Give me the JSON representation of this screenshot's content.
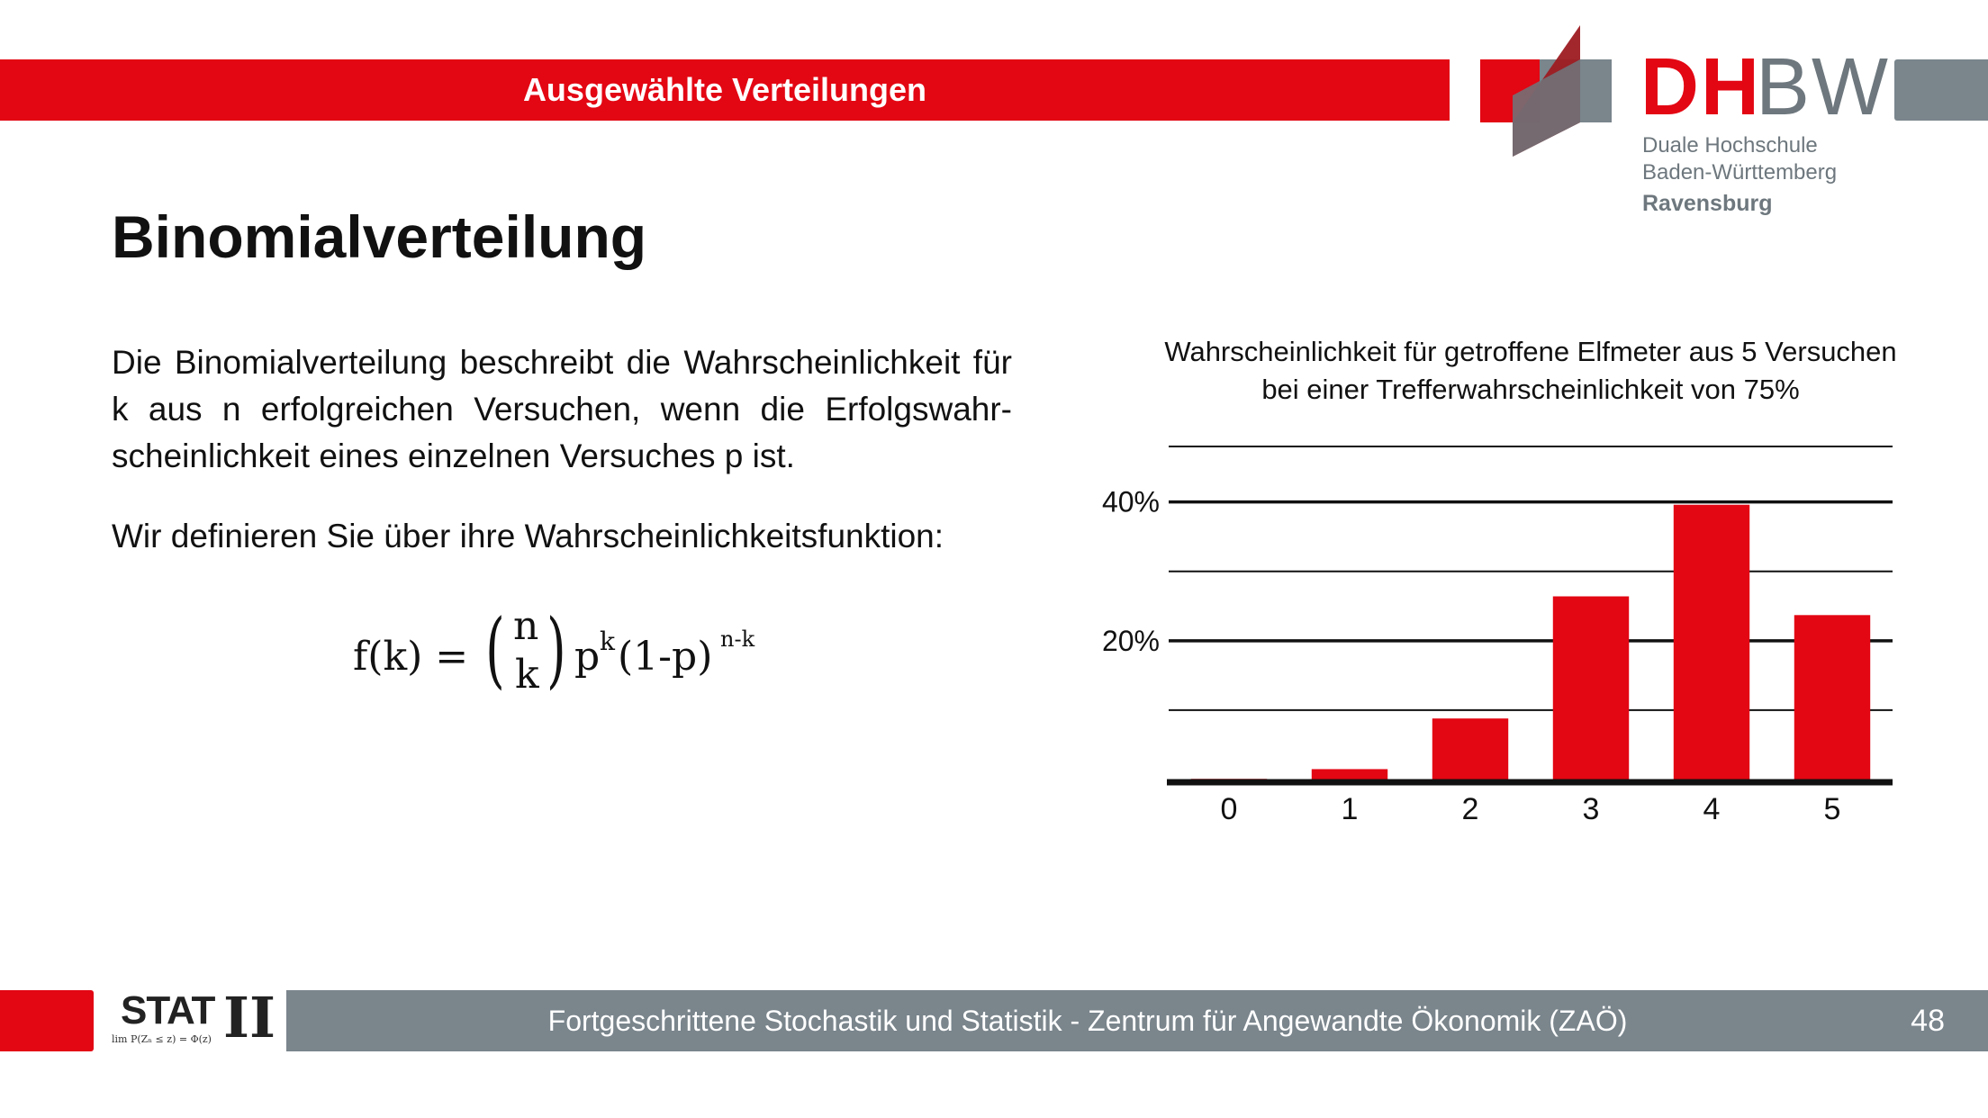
{
  "header": {
    "title": "Ausgewählte Verteilungen"
  },
  "logo": {
    "brand_red": "DH",
    "brand_grey": "BW",
    "line1": "Duale Hochschule",
    "line2": "Baden-Württemberg",
    "line3": "Ravensburg",
    "colors": {
      "red": "#e30613",
      "grey": "#6d777d"
    }
  },
  "slide": {
    "title": "Binomialverteilung",
    "paragraph1": "Die Binomialverteilung beschreibt die Wahrscheinlichkeit für k aus n erfolgreichen Versuchen, wenn die Erfolgswahr-scheinlichkeit eines einzelnen Versuches p ist.",
    "paragraph2": "Wir definieren Sie über ihre Wahrscheinlichkeitsfunktion:"
  },
  "formula": {
    "lhs": "f(k) =",
    "binom_top": "n",
    "binom_bottom": "k",
    "p_base": "p",
    "p_exp": "k",
    "q_base": "(1-p)",
    "q_exp": "n-k"
  },
  "chart_data": {
    "type": "bar",
    "title": "Wahrscheinlichkeit für getroffene Elfmeter aus 5 Versuchen bei einer Trefferwahrscheinlichkeit von 75%",
    "categories": [
      "0",
      "1",
      "2",
      "3",
      "4",
      "5"
    ],
    "values": [
      0.1,
      1.5,
      8.8,
      26.4,
      39.6,
      23.7
    ],
    "ylim": [
      0,
      48
    ],
    "yticks": [
      {
        "value": 40,
        "label": "40%"
      },
      {
        "value": 20,
        "label": "20%"
      }
    ],
    "gridlines": [
      10,
      20,
      30,
      40,
      48
    ],
    "grid": true,
    "xlabel": "",
    "ylabel": "",
    "bar_color": "#e30613"
  },
  "footer": {
    "text": "Fortgeschrittene Stochastik und Statistik - Zentrum für Angewandte Ökonomik (ZAÖ)",
    "page": "48",
    "stat_label": "STAT",
    "stat_roman": "II",
    "stat_formula": "lim P(Zₙ ≤ z) = Φ(z)"
  }
}
